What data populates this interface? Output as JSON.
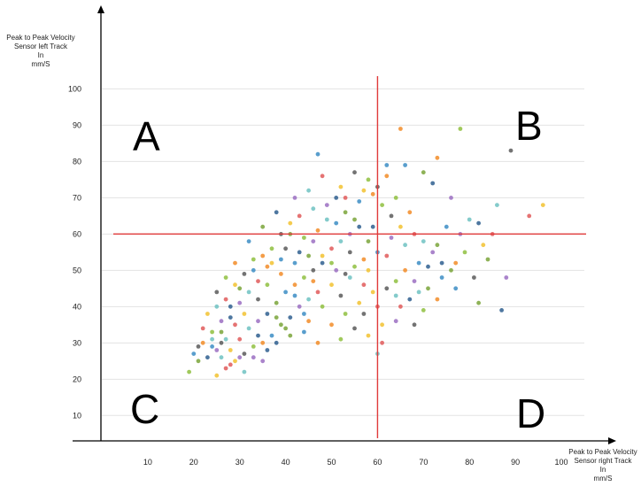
{
  "chart_data": {
    "type": "scatter",
    "title": "",
    "xlabel_lines": [
      "Peak to Peak Velocity",
      "Sensor right Track",
      "In",
      "mm/S"
    ],
    "ylabel_lines": [
      "Peak to Peak Velocity",
      "Sensor left Track",
      "In",
      "mm/S"
    ],
    "x_ticks": [
      10,
      20,
      30,
      40,
      50,
      60,
      70,
      80,
      90,
      100
    ],
    "y_ticks": [
      10,
      20,
      30,
      40,
      50,
      60,
      70,
      80,
      90,
      100
    ],
    "xlim": [
      0,
      105
    ],
    "ylim": [
      3,
      104
    ],
    "grid": "horizontal",
    "threshold_lines": {
      "x": 60,
      "y": 60,
      "color": "#e03a3a"
    },
    "quadrants": [
      {
        "label": "A",
        "position": "top-left"
      },
      {
        "label": "B",
        "position": "top-right"
      },
      {
        "label": "C",
        "position": "bottom-left"
      },
      {
        "label": "D",
        "position": "bottom-right"
      }
    ],
    "series_colors": [
      "#3c8dc4",
      "#f28c28",
      "#8fbf3f",
      "#5a5a5a",
      "#f2c230",
      "#e05a5a",
      "#6fc2c2",
      "#9b6fc2",
      "#2f5f8f",
      "#7aa53a"
    ],
    "points": [
      [
        47,
        82
      ],
      [
        65,
        89
      ],
      [
        78,
        89
      ],
      [
        89,
        83
      ],
      [
        96,
        68
      ],
      [
        93,
        65
      ],
      [
        86,
        68
      ],
      [
        88,
        48
      ],
      [
        87,
        39
      ],
      [
        82,
        41
      ],
      [
        62,
        79
      ],
      [
        73,
        81
      ],
      [
        19,
        22
      ],
      [
        21,
        29
      ],
      [
        25,
        21
      ],
      [
        28,
        24
      ],
      [
        31,
        22
      ],
      [
        33,
        26
      ],
      [
        36,
        28
      ],
      [
        40,
        34
      ],
      [
        44,
        38
      ],
      [
        47,
        30
      ],
      [
        52,
        31
      ],
      [
        55,
        34
      ],
      [
        58,
        32
      ],
      [
        61,
        30
      ],
      [
        60,
        27
      ],
      [
        64,
        36
      ],
      [
        67,
        42
      ],
      [
        71,
        45
      ],
      [
        74,
        48
      ],
      [
        77,
        52
      ],
      [
        79,
        55
      ],
      [
        81,
        48
      ],
      [
        83,
        57
      ],
      [
        85,
        60
      ],
      [
        80,
        64
      ],
      [
        76,
        70
      ],
      [
        72,
        74
      ],
      [
        70,
        77
      ],
      [
        66,
        79
      ],
      [
        62,
        76
      ],
      [
        58,
        75
      ],
      [
        55,
        77
      ],
      [
        52,
        73
      ],
      [
        48,
        76
      ],
      [
        45,
        72
      ],
      [
        42,
        70
      ],
      [
        38,
        66
      ],
      [
        35,
        62
      ],
      [
        32,
        58
      ],
      [
        29,
        52
      ],
      [
        27,
        48
      ],
      [
        25,
        44
      ],
      [
        23,
        38
      ],
      [
        22,
        34
      ],
      [
        24,
        31
      ],
      [
        26,
        36
      ],
      [
        28,
        40
      ],
      [
        30,
        45
      ],
      [
        33,
        50
      ],
      [
        35,
        54
      ],
      [
        37,
        56
      ],
      [
        39,
        60
      ],
      [
        41,
        63
      ],
      [
        43,
        65
      ],
      [
        46,
        67
      ],
      [
        49,
        68
      ],
      [
        51,
        70
      ],
      [
        53,
        66
      ],
      [
        56,
        69
      ],
      [
        59,
        71
      ],
      [
        61,
        68
      ],
      [
        63,
        65
      ],
      [
        65,
        62
      ],
      [
        68,
        60
      ],
      [
        70,
        58
      ],
      [
        72,
        55
      ],
      [
        74,
        52
      ],
      [
        76,
        50
      ],
      [
        69,
        52
      ],
      [
        66,
        50
      ],
      [
        64,
        47
      ],
      [
        62,
        45
      ],
      [
        59,
        44
      ],
      [
        57,
        46
      ],
      [
        54,
        48
      ],
      [
        51,
        50
      ],
      [
        48,
        52
      ],
      [
        45,
        54
      ],
      [
        42,
        52
      ],
      [
        39,
        49
      ],
      [
        36,
        46
      ],
      [
        34,
        42
      ],
      [
        31,
        38
      ],
      [
        29,
        35
      ],
      [
        27,
        31
      ],
      [
        25,
        28
      ],
      [
        23,
        26
      ],
      [
        21,
        25
      ],
      [
        20,
        27
      ],
      [
        22,
        30
      ],
      [
        24,
        33
      ],
      [
        26,
        30
      ],
      [
        28,
        28
      ],
      [
        30,
        31
      ],
      [
        32,
        34
      ],
      [
        34,
        36
      ],
      [
        36,
        38
      ],
      [
        38,
        41
      ],
      [
        40,
        44
      ],
      [
        42,
        46
      ],
      [
        44,
        48
      ],
      [
        46,
        50
      ],
      [
        48,
        54
      ],
      [
        50,
        56
      ],
      [
        52,
        58
      ],
      [
        54,
        60
      ],
      [
        56,
        62
      ],
      [
        58,
        58
      ],
      [
        60,
        55
      ],
      [
        57,
        53
      ],
      [
        55,
        51
      ],
      [
        53,
        49
      ],
      [
        50,
        46
      ],
      [
        47,
        44
      ],
      [
        45,
        42
      ],
      [
        43,
        40
      ],
      [
        41,
        37
      ],
      [
        39,
        35
      ],
      [
        37,
        32
      ],
      [
        35,
        30
      ],
      [
        33,
        29
      ],
      [
        31,
        27
      ],
      [
        29,
        25
      ],
      [
        27,
        23
      ],
      [
        26,
        26
      ],
      [
        30,
        26
      ],
      [
        34,
        32
      ],
      [
        38,
        37
      ],
      [
        42,
        43
      ],
      [
        46,
        47
      ],
      [
        50,
        52
      ],
      [
        54,
        55
      ],
      [
        58,
        50
      ],
      [
        62,
        54
      ],
      [
        66,
        57
      ],
      [
        63,
        59
      ],
      [
        59,
        62
      ],
      [
        55,
        64
      ],
      [
        51,
        63
      ],
      [
        47,
        61
      ],
      [
        44,
        59
      ],
      [
        40,
        56
      ],
      [
        37,
        52
      ],
      [
        34,
        47
      ],
      [
        32,
        44
      ],
      [
        30,
        41
      ],
      [
        28,
        37
      ],
      [
        26,
        33
      ],
      [
        24,
        29
      ],
      [
        45,
        36
      ],
      [
        48,
        40
      ],
      [
        52,
        43
      ],
      [
        56,
        41
      ],
      [
        60,
        40
      ],
      [
        64,
        43
      ],
      [
        68,
        47
      ],
      [
        71,
        51
      ],
      [
        73,
        57
      ],
      [
        75,
        62
      ],
      [
        67,
        66
      ],
      [
        64,
        70
      ],
      [
        60,
        73
      ],
      [
        57,
        72
      ],
      [
        53,
        70
      ],
      [
        49,
        64
      ],
      [
        46,
        58
      ],
      [
        43,
        55
      ],
      [
        41,
        60
      ],
      [
        39,
        53
      ],
      [
        36,
        51
      ],
      [
        33,
        53
      ],
      [
        31,
        49
      ],
      [
        29,
        46
      ],
      [
        27,
        42
      ],
      [
        25,
        40
      ],
      [
        35,
        25
      ],
      [
        38,
        30
      ],
      [
        41,
        32
      ],
      [
        44,
        33
      ],
      [
        50,
        35
      ],
      [
        53,
        38
      ],
      [
        57,
        38
      ],
      [
        61,
        35
      ],
      [
        65,
        40
      ],
      [
        69,
        44
      ],
      [
        78,
        60
      ],
      [
        82,
        63
      ],
      [
        84,
        53
      ],
      [
        77,
        45
      ],
      [
        73,
        42
      ],
      [
        70,
        39
      ],
      [
        68,
        35
      ]
    ]
  }
}
